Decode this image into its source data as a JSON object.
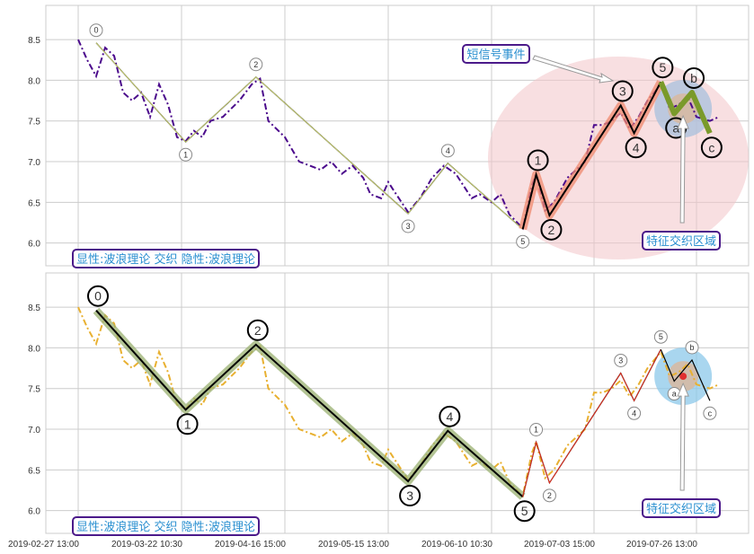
{
  "chart_data": [
    {
      "type": "line",
      "panel": "top",
      "x_ticks": [
        "2019-02-27 13:00",
        "2019-03-22 10:30",
        "2019-04-16 15:00",
        "2019-05-15 13:00",
        "2019-06-10 10:30",
        "2019-07-03 15:00",
        "2019-07-26 13:00"
      ],
      "y_ticks": [
        "6.0",
        "6.5",
        "7.0",
        "7.5",
        "8.0",
        "8.5"
      ],
      "ylim": [
        5.72,
        8.92
      ],
      "grid": true,
      "price_color": "#4b0a8c",
      "price_style": "dash-dot",
      "waves": [
        {
          "style": "thin",
          "color": "#6b7a2a",
          "points": [
            {
              "label": "0",
              "date": "2019-03-03",
              "value": 8.46
            },
            {
              "label": "1",
              "date": "2019-03-23",
              "value": 7.24
            },
            {
              "label": "2",
              "date": "2019-04-09",
              "value": 8.04
            },
            {
              "label": "3",
              "date": "2019-05-20",
              "value": 6.36
            },
            {
              "label": "4",
              "date": "2019-05-30",
              "value": 6.98
            },
            {
              "label": "5",
              "date": "2019-06-17",
              "value": 6.17
            }
          ]
        },
        {
          "style": "thick",
          "color": "#f08a6e",
          "points": [
            {
              "label": "0",
              "date": "2019-06-17",
              "value": 6.17
            },
            {
              "label": "1",
              "date": "2019-06-20",
              "value": 6.84
            },
            {
              "label": "2",
              "date": "2019-06-23",
              "value": 6.34
            },
            {
              "label": "3",
              "date": "2019-07-09",
              "value": 7.69
            },
            {
              "label": "4",
              "date": "2019-07-12",
              "value": 7.35
            },
            {
              "label": "5",
              "date": "2019-07-18",
              "value": 7.98
            }
          ]
        },
        {
          "style": "thick",
          "color": "#7a9a2a",
          "points": [
            {
              "label": "5",
              "date": "2019-07-18",
              "value": 7.98
            },
            {
              "label": "a",
              "date": "2019-07-21",
              "value": 7.59
            },
            {
              "label": "b",
              "date": "2019-07-25",
              "value": 7.85
            },
            {
              "label": "c",
              "date": "2019-07-29",
              "value": 7.35
            }
          ]
        }
      ],
      "annotations": [
        {
          "text": "显性:波浪理论 交织 隐性:波浪理论"
        },
        {
          "text": "短信号事件"
        },
        {
          "text": "特征交织区域"
        }
      ]
    },
    {
      "type": "line",
      "panel": "bottom",
      "x_ticks": [
        "2019-02-27 13:00",
        "2019-03-22 10:30",
        "2019-04-16 15:00",
        "2019-05-15 13:00",
        "2019-06-10 10:30",
        "2019-07-03 15:00",
        "2019-07-26 13:00"
      ],
      "y_ticks": [
        "6.0",
        "6.5",
        "7.0",
        "7.5",
        "8.0",
        "8.5"
      ],
      "ylim": [
        5.72,
        8.92
      ],
      "grid": true,
      "price_color": "#e8b030",
      "price_style": "dash-dot",
      "waves": [
        {
          "style": "thick-big",
          "color": "#9ab070",
          "points": [
            {
              "label": "0",
              "date": "2019-03-03",
              "value": 8.46
            },
            {
              "label": "1",
              "date": "2019-03-23",
              "value": 7.24
            },
            {
              "label": "2",
              "date": "2019-04-09",
              "value": 8.04
            },
            {
              "label": "3",
              "date": "2019-05-20",
              "value": 6.36
            },
            {
              "label": "4",
              "date": "2019-05-30",
              "value": 6.98
            },
            {
              "label": "5",
              "date": "2019-06-17",
              "value": 6.17
            }
          ]
        },
        {
          "style": "thin-red",
          "color": "#e83020",
          "points": [
            {
              "label": "0",
              "date": "2019-06-17",
              "value": 6.17
            },
            {
              "label": "1",
              "date": "2019-06-20",
              "value": 6.84
            },
            {
              "label": "2",
              "date": "2019-06-23",
              "value": 6.34
            },
            {
              "label": "3",
              "date": "2019-07-09",
              "value": 7.69
            },
            {
              "label": "4",
              "date": "2019-07-12",
              "value": 7.35
            },
            {
              "label": "5",
              "date": "2019-07-18",
              "value": 7.98
            }
          ]
        },
        {
          "style": "thin-green",
          "color": "#9ab070",
          "points": [
            {
              "label": "5",
              "date": "2019-07-18",
              "value": 7.98
            },
            {
              "label": "a",
              "date": "2019-07-21",
              "value": 7.59
            },
            {
              "label": "b",
              "date": "2019-07-25",
              "value": 7.85
            },
            {
              "label": "c",
              "date": "2019-07-29",
              "value": 7.35
            }
          ]
        }
      ],
      "annotations": [
        {
          "text": "显性:波浪理论 交织 隐性:波浪理论"
        },
        {
          "text": "特征交织区域"
        }
      ]
    }
  ],
  "price_series": [
    [
      "2019-02-27",
      8.5
    ],
    [
      "2019-03-01",
      8.25
    ],
    [
      "2019-03-03",
      8.05
    ],
    [
      "2019-03-05",
      8.4
    ],
    [
      "2019-03-07",
      8.3
    ],
    [
      "2019-03-09",
      7.85
    ],
    [
      "2019-03-11",
      7.75
    ],
    [
      "2019-03-13",
      7.85
    ],
    [
      "2019-03-15",
      7.55
    ],
    [
      "2019-03-17",
      7.95
    ],
    [
      "2019-03-19",
      7.7
    ],
    [
      "2019-03-21",
      7.3
    ],
    [
      "2019-03-23",
      7.25
    ],
    [
      "2019-03-25",
      7.38
    ],
    [
      "2019-03-27",
      7.3
    ],
    [
      "2019-03-29",
      7.5
    ],
    [
      "2019-04-01",
      7.55
    ],
    [
      "2019-04-03",
      7.65
    ],
    [
      "2019-04-05",
      7.75
    ],
    [
      "2019-04-08",
      7.95
    ],
    [
      "2019-04-10",
      8.02
    ],
    [
      "2019-04-12",
      7.5
    ],
    [
      "2019-04-14",
      7.4
    ],
    [
      "2019-04-16",
      7.3
    ],
    [
      "2019-04-18",
      7.15
    ],
    [
      "2019-04-20",
      7.0
    ],
    [
      "2019-04-23",
      6.95
    ],
    [
      "2019-04-26",
      6.9
    ],
    [
      "2019-04-29",
      7.0
    ],
    [
      "2019-05-02",
      6.85
    ],
    [
      "2019-05-05",
      6.95
    ],
    [
      "2019-05-08",
      6.8
    ],
    [
      "2019-05-10",
      6.6
    ],
    [
      "2019-05-13",
      6.55
    ],
    [
      "2019-05-15",
      6.75
    ],
    [
      "2019-05-17",
      6.6
    ],
    [
      "2019-05-20",
      6.38
    ],
    [
      "2019-05-23",
      6.55
    ],
    [
      "2019-05-26",
      6.8
    ],
    [
      "2019-05-29",
      6.95
    ],
    [
      "2019-06-01",
      6.85
    ],
    [
      "2019-06-03",
      6.7
    ],
    [
      "2019-06-05",
      6.55
    ],
    [
      "2019-06-07",
      6.6
    ],
    [
      "2019-06-10",
      6.5
    ],
    [
      "2019-06-12",
      6.6
    ],
    [
      "2019-06-14",
      6.35
    ],
    [
      "2019-06-17",
      6.18
    ],
    [
      "2019-06-19",
      6.7
    ],
    [
      "2019-06-20",
      6.85
    ],
    [
      "2019-06-22",
      6.4
    ],
    [
      "2019-06-24",
      6.5
    ],
    [
      "2019-06-27",
      6.8
    ],
    [
      "2019-07-01",
      7.0
    ],
    [
      "2019-07-03",
      7.45
    ],
    [
      "2019-07-05",
      7.45
    ],
    [
      "2019-07-07",
      7.5
    ],
    [
      "2019-07-09",
      7.6
    ],
    [
      "2019-07-11",
      7.4
    ],
    [
      "2019-07-13",
      7.55
    ],
    [
      "2019-07-15",
      7.75
    ],
    [
      "2019-07-18",
      7.95
    ],
    [
      "2019-07-20",
      7.65
    ],
    [
      "2019-07-22",
      7.7
    ],
    [
      "2019-07-24",
      7.8
    ],
    [
      "2019-07-26",
      7.55
    ],
    [
      "2019-07-29",
      7.5
    ],
    [
      "2019-07-31",
      7.55
    ]
  ]
}
